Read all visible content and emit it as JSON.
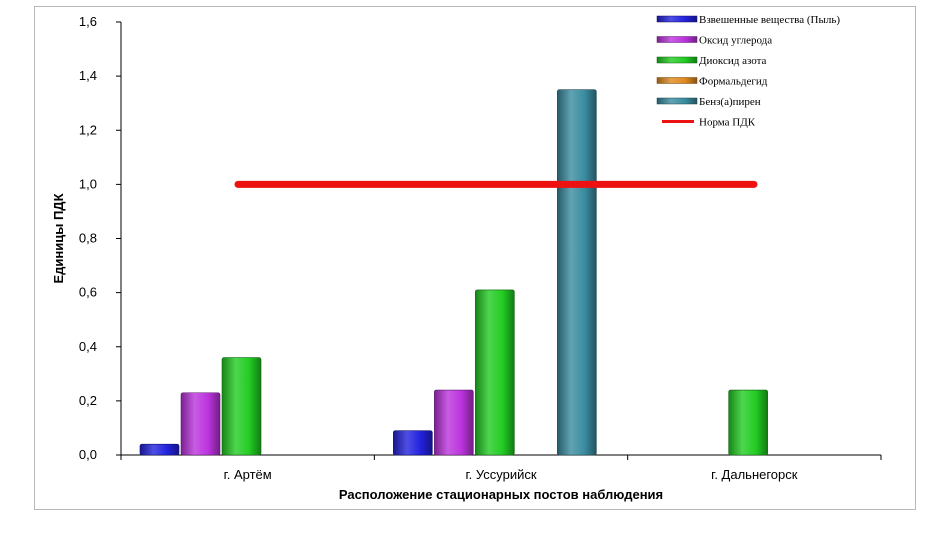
{
  "chart_data": {
    "type": "bar",
    "title": "",
    "xlabel": "Расположение стационарных постов наблюдения",
    "ylabel": "Единицы ПДК",
    "ylim": [
      0,
      1.6
    ],
    "yticks": [
      "0,0",
      "0,2",
      "0,4",
      "0,6",
      "0,8",
      "1,0",
      "1,2",
      "1,4",
      "1,6"
    ],
    "categories": [
      "г. Артём",
      "г. Уссурийск",
      "г. Дальнегорск"
    ],
    "series": [
      {
        "name": "Взвешенные вещества (Пыль)",
        "color": "#2222dd",
        "values": [
          0.04,
          0.09,
          0
        ]
      },
      {
        "name": "Оксид углерода",
        "color": "#bb33dd",
        "values": [
          0.23,
          0.24,
          0
        ]
      },
      {
        "name": "Диоксид азота",
        "color": "#22cc22",
        "values": [
          0.36,
          0.61,
          0.24
        ]
      },
      {
        "name": "Формальдегид",
        "color": "#e08a1e",
        "values": [
          0,
          0,
          0
        ]
      },
      {
        "name": "Бенз(а)пирен",
        "color": "#3a8ca0",
        "values": [
          0,
          1.35,
          0
        ]
      }
    ],
    "reference_line": {
      "name": "Норма ПДК",
      "value": 1.0,
      "color": "#ee1111"
    },
    "legend_position": "top-right",
    "grid": false
  }
}
